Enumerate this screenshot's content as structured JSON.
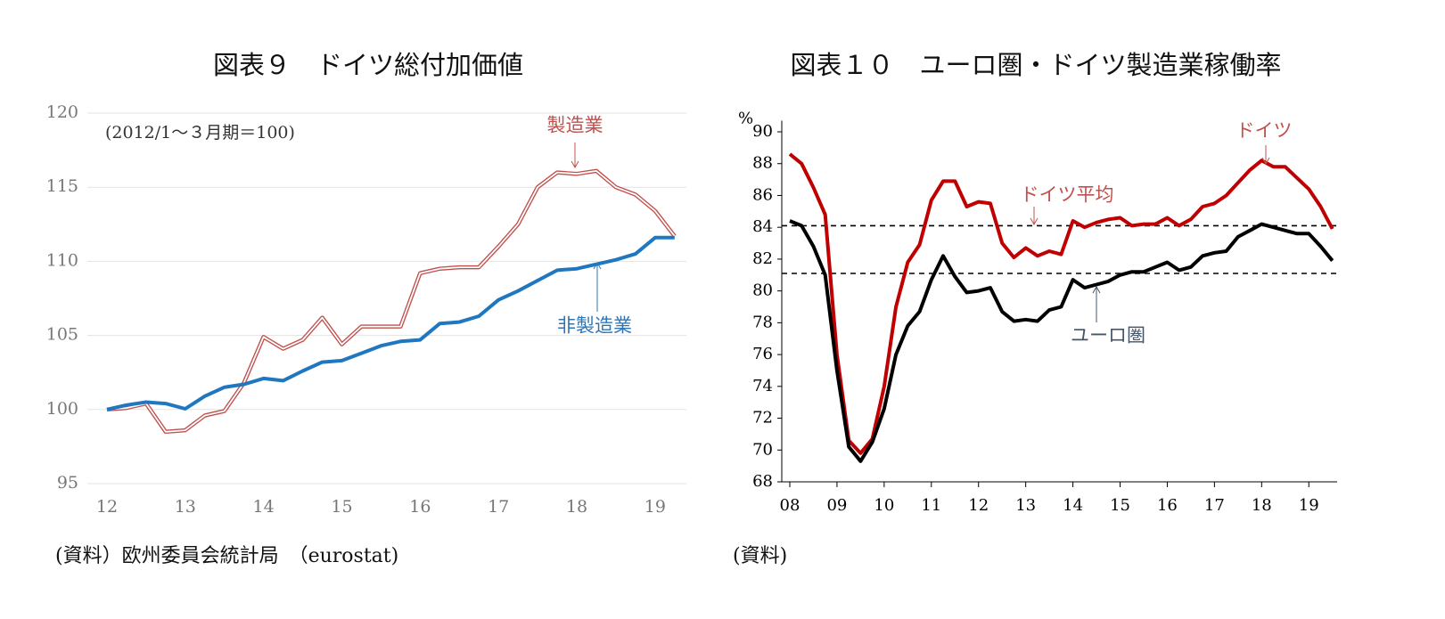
{
  "chart_data": [
    {
      "type": "line",
      "title": "図表９　ドイツ総付加価値",
      "source": "(資料）欧州委員会統計局　（eurostat)",
      "annotations": [
        {
          "text": "(2012/1～３月期＝100)",
          "color": "#333333"
        },
        {
          "text": "製造業",
          "color": "#c0504d"
        },
        {
          "text": "非製造業",
          "color": "#2e75b6"
        }
      ],
      "x": [
        12,
        12.25,
        12.5,
        12.75,
        13,
        13.25,
        13.5,
        13.75,
        14,
        14.25,
        14.5,
        14.75,
        15,
        15.25,
        15.5,
        15.75,
        16,
        16.25,
        16.5,
        16.75,
        17,
        17.25,
        17.5,
        17.75,
        18,
        18.25,
        18.5,
        18.75,
        19,
        19.25
      ],
      "series": [
        {
          "name": "製造業",
          "color": "#c0504d",
          "style": "double",
          "values": [
            100,
            100.1,
            100.4,
            98.5,
            98.6,
            99.6,
            99.9,
            101.8,
            104.9,
            104.1,
            104.7,
            106.2,
            104.4,
            105.6,
            105.6,
            105.6,
            109.2,
            109.5,
            109.6,
            109.6,
            111.0,
            112.5,
            115.0,
            116.0,
            115.9,
            116.1,
            115.0,
            114.5,
            113.4,
            111.7
          ]
        },
        {
          "name": "非製造業",
          "color": "#1f77c0",
          "style": "solid",
          "values": [
            100,
            100.3,
            100.5,
            100.4,
            100.05,
            100.9,
            101.5,
            101.7,
            102.1,
            101.95,
            102.6,
            103.2,
            103.3,
            103.8,
            104.3,
            104.6,
            104.7,
            105.8,
            105.9,
            106.3,
            107.4,
            108.0,
            108.7,
            109.4,
            109.5,
            109.8,
            110.1,
            110.5,
            111.6,
            111.6
          ]
        }
      ],
      "xlim": [
        11.75,
        19.4
      ],
      "xticks": [
        12,
        13,
        14,
        15,
        16,
        17,
        18,
        19
      ],
      "ylim": [
        95,
        120
      ],
      "yticks": [
        95,
        100,
        105,
        110,
        115,
        120
      ],
      "grid": true,
      "axis_lines": false
    },
    {
      "type": "line",
      "title": "図表１０　ユーロ圏・ドイツ製造業稼働率",
      "source": "(資料)",
      "y_label": "%",
      "annotations": [
        {
          "text": "ドイツ",
          "color": "#c0504d"
        },
        {
          "text": "ドイツ平均",
          "color": "#c0504d"
        },
        {
          "text": "ユーロ圏",
          "color": "#44546a"
        }
      ],
      "x": [
        8,
        8.25,
        8.5,
        8.75,
        9,
        9.25,
        9.5,
        9.75,
        10,
        10.25,
        10.5,
        10.75,
        11,
        11.25,
        11.5,
        11.75,
        12,
        12.25,
        12.5,
        12.75,
        13,
        13.25,
        13.5,
        13.75,
        14,
        14.25,
        14.5,
        14.75,
        15,
        15.25,
        15.5,
        15.75,
        16,
        16.25,
        16.5,
        16.75,
        17,
        17.25,
        17.5,
        17.75,
        18,
        18.25,
        18.5,
        18.75,
        19,
        19.25,
        19.5
      ],
      "series": [
        {
          "name": "ドイツ",
          "color": "#c00000",
          "style": "solid",
          "values": [
            88.6,
            88.0,
            86.5,
            84.8,
            76.0,
            70.6,
            69.8,
            70.7,
            74.0,
            79.0,
            81.8,
            82.9,
            85.7,
            86.9,
            86.9,
            85.3,
            85.6,
            85.5,
            83.0,
            82.1,
            82.7,
            82.2,
            82.5,
            82.3,
            84.4,
            84.0,
            84.3,
            84.5,
            84.6,
            84.1,
            84.2,
            84.2,
            84.6,
            84.1,
            84.5,
            85.3,
            85.5,
            86.0,
            86.8,
            87.6,
            88.2,
            87.8,
            87.8,
            87.1,
            86.4,
            85.3,
            83.9
          ]
        },
        {
          "name": "ユーロ圏",
          "color": "#000000",
          "style": "solid",
          "values": [
            84.4,
            84.1,
            82.8,
            81.0,
            75.0,
            70.2,
            69.3,
            70.5,
            72.6,
            76.0,
            77.8,
            78.7,
            80.7,
            82.2,
            80.9,
            79.9,
            80.0,
            80.2,
            78.7,
            78.1,
            78.2,
            78.1,
            78.8,
            79.0,
            80.7,
            80.2,
            80.4,
            80.6,
            81.0,
            81.2,
            81.2,
            81.5,
            81.8,
            81.3,
            81.5,
            82.2,
            82.4,
            82.5,
            83.4,
            83.8,
            84.2,
            84.0,
            83.8,
            83.6,
            83.6,
            82.8,
            81.9
          ]
        }
      ],
      "reference_lines": [
        84.1,
        81.1
      ],
      "xlim": [
        7.83,
        19.6
      ],
      "xticks": [
        {
          "value": 8,
          "label": "08"
        },
        {
          "value": 9,
          "label": "09"
        },
        10,
        11,
        12,
        13,
        14,
        15,
        16,
        17,
        18,
        19
      ],
      "ylim": [
        68,
        90.7
      ],
      "yticks": [
        68,
        70,
        72,
        74,
        76,
        78,
        80,
        82,
        84,
        86,
        88,
        90
      ],
      "grid": false,
      "axis_lines": true
    }
  ]
}
